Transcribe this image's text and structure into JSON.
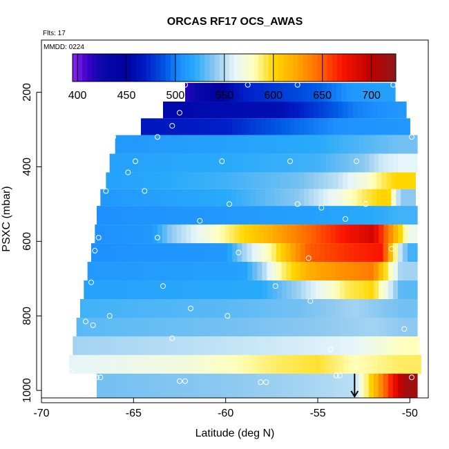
{
  "chart_data": {
    "type": "heatmap",
    "title": "ORCAS RF17 OCS_AWAS",
    "flights_label": "Flts: 17",
    "date_label": "MMDD: 0224",
    "xlabel": "Latitude (deg N)",
    "ylabel": "PSXC (mbar)",
    "xlim": [
      -70,
      -49
    ],
    "ylim": [
      1020,
      60
    ],
    "x_ticks": [
      -70,
      -65,
      -60,
      -55,
      -50
    ],
    "x_tick_labels": [
      "-70",
      "-65",
      "-60",
      "-55",
      "-50"
    ],
    "y_ticks": [
      200,
      400,
      600,
      800,
      1000
    ],
    "y_tick_labels": [
      "200",
      "400",
      "600",
      "800",
      "1000"
    ],
    "colorbar": {
      "range": [
        395,
        725
      ],
      "ticks": [
        400,
        450,
        500,
        550,
        600,
        650,
        700
      ],
      "tick_labels": [
        "400",
        "450",
        "500",
        "550",
        "600",
        "650",
        "700"
      ]
    },
    "grid": false,
    "layers": [
      {
        "p0": 175,
        "p1": 225,
        "x0": -62.2,
        "x1": -50.8,
        "segments": [
          [
            -62.2,
            415
          ],
          [
            -60.5,
            445
          ],
          [
            -59.0,
            470
          ],
          [
            -55.0,
            490
          ],
          [
            -53.0,
            510
          ],
          [
            -51.0,
            515
          ]
        ]
      },
      {
        "p0": 225,
        "p1": 270,
        "x0": -63.4,
        "x1": -50.2,
        "segments": [
          [
            -63.4,
            455
          ],
          [
            -57.0,
            460
          ],
          [
            -55.0,
            480
          ],
          [
            -53.0,
            500
          ],
          [
            -50.2,
            510
          ]
        ]
      },
      {
        "p0": 270,
        "p1": 315,
        "x0": -64.6,
        "x1": -50.0,
        "segments": [
          [
            -64.6,
            465
          ],
          [
            -60.0,
            470
          ],
          [
            -57.0,
            490
          ],
          [
            -54.0,
            505
          ],
          [
            -50.0,
            510
          ]
        ]
      },
      {
        "p0": 315,
        "p1": 365,
        "x0": -66.0,
        "x1": -49.6,
        "segments": [
          [
            -66.0,
            510
          ],
          [
            -60.0,
            515
          ],
          [
            -55.0,
            520
          ],
          [
            -52.0,
            530
          ],
          [
            -50.5,
            535
          ]
        ]
      },
      {
        "p0": 365,
        "p1": 415,
        "x0": -66.3,
        "x1": -49.6,
        "segments": [
          [
            -66.3,
            515
          ],
          [
            -60.0,
            520
          ],
          [
            -55.0,
            525
          ],
          [
            -52.5,
            540
          ],
          [
            -51.5,
            555
          ],
          [
            -50.5,
            560
          ]
        ]
      },
      {
        "p0": 415,
        "p1": 460,
        "x0": -66.5,
        "x1": -49.7,
        "segments": [
          [
            -66.5,
            515
          ],
          [
            -60.0,
            525
          ],
          [
            -56.0,
            535
          ],
          [
            -54.0,
            550
          ],
          [
            -52.5,
            570
          ],
          [
            -51.5,
            590
          ],
          [
            -50.8,
            600
          ]
        ]
      },
      {
        "p0": 460,
        "p1": 505,
        "x0": -66.8,
        "x1": -49.7,
        "segments": [
          [
            -66.8,
            510
          ],
          [
            -60.0,
            520
          ],
          [
            -56.0,
            540
          ],
          [
            -54.0,
            565
          ],
          [
            -52.5,
            590
          ],
          [
            -51.2,
            605
          ],
          [
            -50.5,
            540
          ]
        ]
      },
      {
        "p0": 505,
        "p1": 555,
        "x0": -67.0,
        "x1": -49.6,
        "segments": [
          [
            -67.0,
            505
          ],
          [
            -60.0,
            510
          ],
          [
            -55.0,
            515
          ],
          [
            -52.0,
            520
          ],
          [
            -50.5,
            525
          ]
        ]
      },
      {
        "p0": 555,
        "p1": 605,
        "x0": -67.1,
        "x1": -49.6,
        "segments": [
          [
            -67.1,
            505
          ],
          [
            -64.0,
            510
          ],
          [
            -63.0,
            540
          ],
          [
            -61.0,
            570
          ],
          [
            -59.0,
            600
          ],
          [
            -57.5,
            620
          ],
          [
            -56.0,
            640
          ],
          [
            -54.0,
            665
          ],
          [
            -52.0,
            690
          ],
          [
            -50.5,
            600
          ],
          [
            -50.0,
            565
          ]
        ]
      },
      {
        "p0": 605,
        "p1": 655,
        "x0": -67.3,
        "x1": -49.6,
        "segments": [
          [
            -67.3,
            505
          ],
          [
            -60.0,
            510
          ],
          [
            -59.0,
            545
          ],
          [
            -57.5,
            585
          ],
          [
            -56.5,
            620
          ],
          [
            -55.5,
            650
          ],
          [
            -53.0,
            665
          ],
          [
            -51.5,
            670
          ],
          [
            -50.5,
            550
          ],
          [
            -50.0,
            525
          ]
        ]
      },
      {
        "p0": 655,
        "p1": 705,
        "x0": -67.5,
        "x1": -49.6,
        "segments": [
          [
            -67.5,
            510
          ],
          [
            -59.0,
            515
          ],
          [
            -58.0,
            545
          ],
          [
            -57.0,
            585
          ],
          [
            -55.5,
            620
          ],
          [
            -54.0,
            630
          ],
          [
            -52.0,
            640
          ],
          [
            -50.5,
            545
          ]
        ]
      },
      {
        "p0": 705,
        "p1": 755,
        "x0": -67.7,
        "x1": -49.6,
        "segments": [
          [
            -67.7,
            515
          ],
          [
            -58.0,
            520
          ],
          [
            -56.0,
            545
          ],
          [
            -54.5,
            570
          ],
          [
            -53.5,
            590
          ],
          [
            -52.0,
            600
          ],
          [
            -50.5,
            530
          ]
        ]
      },
      {
        "p0": 755,
        "p1": 805,
        "x0": -67.9,
        "x1": -49.6,
        "segments": [
          [
            -67.9,
            525
          ],
          [
            -60.0,
            530
          ],
          [
            -56.0,
            535
          ],
          [
            -53.0,
            545
          ],
          [
            -50.5,
            535
          ]
        ]
      },
      {
        "p0": 805,
        "p1": 855,
        "x0": -68.1,
        "x1": -49.6,
        "segments": [
          [
            -68.1,
            530
          ],
          [
            -60.0,
            535
          ],
          [
            -55.0,
            540
          ],
          [
            -52.0,
            545
          ],
          [
            -50.2,
            540
          ]
        ]
      },
      {
        "p0": 855,
        "p1": 905,
        "x0": -68.3,
        "x1": -49.5,
        "segments": [
          [
            -68.3,
            545
          ],
          [
            -62.0,
            550
          ],
          [
            -57.0,
            555
          ],
          [
            -53.0,
            560
          ],
          [
            -50.3,
            580
          ]
        ]
      },
      {
        "p0": 905,
        "p1": 955,
        "x0": -68.5,
        "x1": -49.4,
        "segments": [
          [
            -68.5,
            560
          ],
          [
            -62.0,
            570
          ],
          [
            -57.0,
            590
          ],
          [
            -55.0,
            595
          ],
          [
            -53.0,
            580
          ],
          [
            -50.5,
            590
          ]
        ]
      },
      {
        "p0": 955,
        "p1": 1020,
        "x0": -67.0,
        "x1": -49.6,
        "segments": [
          [
            -67.0,
            535
          ],
          [
            -60.0,
            540
          ],
          [
            -56.0,
            545
          ],
          [
            -53.0,
            550
          ],
          [
            -50.2,
            715
          ]
        ]
      }
    ],
    "sample_points": [
      [
        -62.2,
        180
      ],
      [
        -58.8,
        180
      ],
      [
        -56.1,
        180
      ],
      [
        -50.9,
        180
      ],
      [
        -62.5,
        255
      ],
      [
        -62.9,
        290
      ],
      [
        -63.7,
        320
      ],
      [
        -66.1,
        320
      ],
      [
        -49.9,
        320
      ],
      [
        -64.9,
        385
      ],
      [
        -65.3,
        415
      ],
      [
        -60.2,
        385
      ],
      [
        -56.5,
        385
      ],
      [
        -52.9,
        385
      ],
      [
        -64.4,
        465
      ],
      [
        -66.5,
        465
      ],
      [
        -59.8,
        500
      ],
      [
        -56.1,
        500
      ],
      [
        -54.8,
        510
      ],
      [
        -52.4,
        500
      ],
      [
        -61.4,
        545
      ],
      [
        -53.5,
        540
      ],
      [
        -66.9,
        590
      ],
      [
        -63.7,
        590
      ],
      [
        -67.1,
        625
      ],
      [
        -51.0,
        620
      ],
      [
        -59.3,
        630
      ],
      [
        -55.5,
        645
      ],
      [
        -67.3,
        710
      ],
      [
        -63.4,
        720
      ],
      [
        -57.3,
        720
      ],
      [
        -67.6,
        815
      ],
      [
        -67.2,
        825
      ],
      [
        -66.3,
        800
      ],
      [
        -59.9,
        800
      ],
      [
        -61.9,
        780
      ],
      [
        -62.9,
        860
      ],
      [
        -55.4,
        760
      ],
      [
        -54.3,
        890
      ],
      [
        -50.3,
        835
      ],
      [
        -68.4,
        950
      ],
      [
        -67.0,
        965
      ],
      [
        -66.8,
        965
      ],
      [
        -62.5,
        975
      ],
      [
        -62.2,
        975
      ],
      [
        -58.1,
        978
      ],
      [
        -57.8,
        978
      ],
      [
        -54.0,
        960
      ],
      [
        -53.8,
        960
      ],
      [
        -49.9,
        965
      ]
    ],
    "marker": {
      "x": -53.0,
      "p_from": 955,
      "p_to": 1020
    }
  }
}
